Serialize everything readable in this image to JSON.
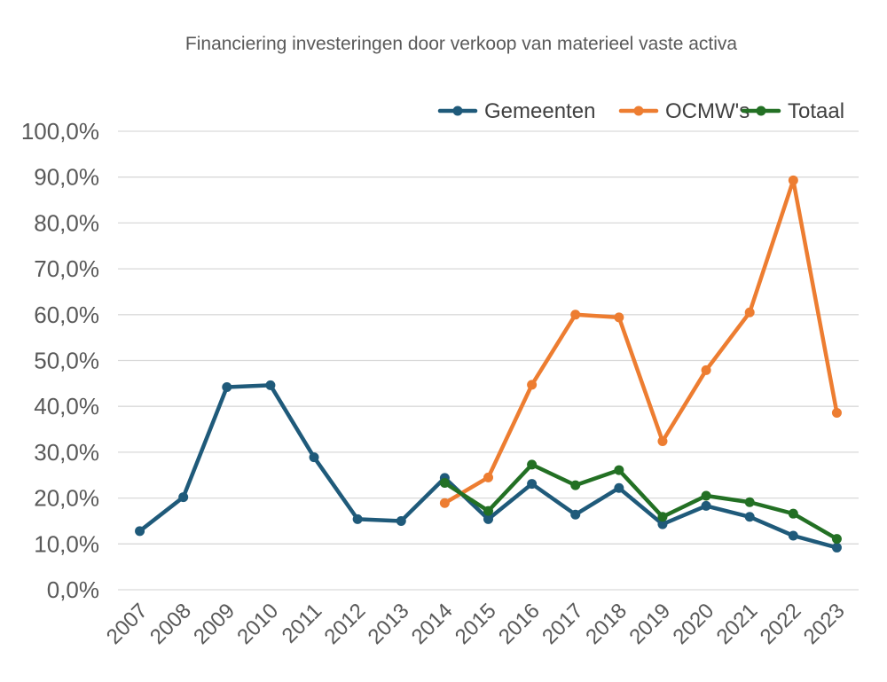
{
  "chart_data": {
    "type": "line",
    "title": "Financiering investeringen door verkoop van materieel vaste activa",
    "xlabel": "",
    "ylabel": "",
    "categories": [
      "2007",
      "2008",
      "2009",
      "2010",
      "2011",
      "2012",
      "2013",
      "2014",
      "2015",
      "2016",
      "2017",
      "2018",
      "2019",
      "2020",
      "2021",
      "2022",
      "2023"
    ],
    "ylim": [
      0,
      100
    ],
    "yticks": [
      "0,0%",
      "10,0%",
      "20,0%",
      "30,0%",
      "40,0%",
      "50,0%",
      "60,0%",
      "70,0%",
      "80,0%",
      "90,0%",
      "100,0%"
    ],
    "grid": true,
    "legend_position": "top-right",
    "series": [
      {
        "name": "Gemeenten",
        "color": "#1f5a7a",
        "values": [
          12.8,
          20.2,
          44.2,
          44.6,
          28.9,
          15.4,
          15.0,
          24.4,
          15.4,
          23.1,
          16.4,
          22.2,
          14.3,
          18.3,
          15.9,
          11.8,
          9.2
        ]
      },
      {
        "name": "OCMW's",
        "color": "#ed7d31",
        "values": [
          null,
          null,
          null,
          null,
          null,
          null,
          null,
          18.9,
          24.5,
          44.7,
          60.0,
          59.4,
          32.4,
          47.9,
          60.5,
          89.3,
          38.6
        ]
      },
      {
        "name": "Totaal",
        "color": "#237024",
        "values": [
          null,
          null,
          null,
          null,
          null,
          null,
          null,
          23.3,
          17.2,
          27.3,
          22.8,
          26.1,
          15.9,
          20.5,
          19.1,
          16.6,
          11.1
        ]
      }
    ]
  }
}
